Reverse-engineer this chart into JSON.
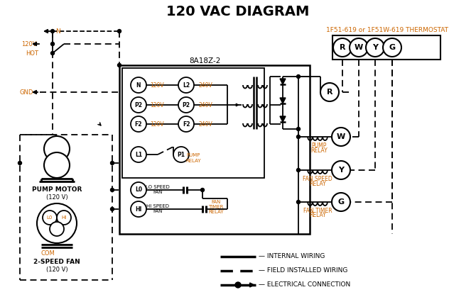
{
  "title": "120 VAC DIAGRAM",
  "title_fontsize": 14,
  "title_fontweight": "bold",
  "background_color": "#ffffff",
  "line_color": "#000000",
  "orange_color": "#cc6600",
  "thermostat_label": "1F51-619 or 1F51W-619 THERMOSTAT",
  "control_box_label": "8A18Z-2",
  "fig_w": 6.7,
  "fig_h": 4.19,
  "dpi": 100
}
